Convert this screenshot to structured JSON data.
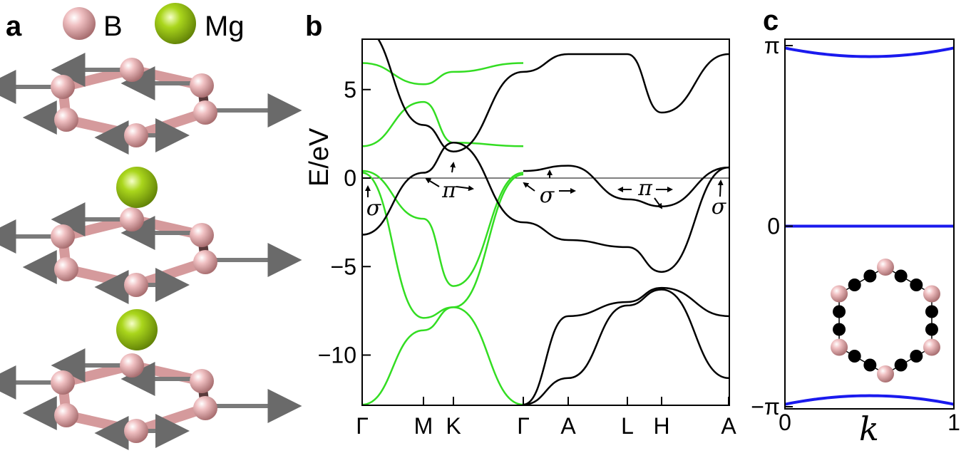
{
  "panels": {
    "a": {
      "letter": "a",
      "legend": [
        {
          "label": "B",
          "color": "#e3a6a8"
        },
        {
          "label": "Mg",
          "color": "#9ccc1a"
        }
      ]
    },
    "b": {
      "letter": "b",
      "ylabel": "E/eV",
      "yticks": [
        "5",
        "0",
        "−5",
        "−10"
      ],
      "kpoints": [
        "Γ",
        "M",
        "K",
        "Γ",
        "A",
        "L",
        "H",
        "A"
      ],
      "annotations": [
        "σ",
        "π",
        "σ",
        "π",
        "σ"
      ]
    },
    "c": {
      "letter": "c",
      "yticks": [
        "π",
        "0",
        "−π"
      ],
      "xticks": [
        "0",
        "1"
      ],
      "xlabel": "k"
    }
  },
  "colors": {
    "green_band": "#33dd22",
    "black_band": "#000000",
    "blue_band": "#1a1aee",
    "boron": "#e3a6a8",
    "magnesium": "#9ccc1a"
  },
  "chart_data": [
    {
      "type": "line",
      "title": "",
      "xlabel": "",
      "ylabel": "E/eV",
      "x": [
        "Γ",
        "M",
        "K",
        "Γ",
        "A",
        "L",
        "H",
        "A"
      ],
      "ylim": [
        -12.8,
        7.8
      ],
      "yticks": [
        5,
        0,
        -5,
        -10
      ],
      "fermi_level": 0,
      "series": [
        {
          "color": "green",
          "x": [
            0,
            1,
            2,
            3
          ],
          "values": [
            0.4,
            -2.3,
            -6.1,
            0.3
          ]
        },
        {
          "color": "green",
          "x": [
            0,
            1,
            2,
            3
          ],
          "values": [
            0.3,
            -7.9,
            -7.3,
            0.2
          ]
        },
        {
          "color": "green",
          "x": [
            0,
            1,
            2,
            3
          ],
          "values": [
            -12.8,
            -8.6,
            -7.3,
            -12.8
          ]
        },
        {
          "color": "green",
          "x": [
            0,
            1,
            2,
            3
          ],
          "values": [
            1.8,
            4.3,
            2.0,
            1.8
          ]
        },
        {
          "color": "green",
          "x": [
            0,
            1,
            2,
            3
          ],
          "values": [
            6.5,
            5.3,
            6.0,
            6.5
          ]
        },
        {
          "color": "black",
          "x": [
            0,
            1,
            2,
            3,
            4,
            5,
            6,
            7
          ],
          "values": [
            -3.2,
            0.3,
            2.0,
            -2.5,
            -3.5,
            -3.9,
            -5.3,
            0.6
          ]
        },
        {
          "color": "black",
          "x": [
            0,
            1,
            2,
            3,
            4,
            5,
            6,
            7
          ],
          "values": [
            8.5,
            3.0,
            1.5,
            6.0,
            7.0,
            7.0,
            3.7,
            7.0
          ]
        },
        {
          "color": "black",
          "x": [
            3,
            4,
            5,
            6,
            7
          ],
          "values": [
            0.4,
            0.7,
            -1.2,
            -1.6,
            0.6
          ]
        },
        {
          "color": "black",
          "x": [
            3,
            4,
            5,
            6,
            7
          ],
          "values": [
            -12.8,
            -11.3,
            -7.2,
            -6.3,
            -11.3
          ]
        },
        {
          "color": "black",
          "x": [
            3,
            4,
            5,
            6,
            7
          ],
          "values": [
            -12.8,
            -7.8,
            -7.0,
            -6.2,
            -7.8
          ]
        }
      ]
    },
    {
      "type": "line",
      "title": "",
      "xlabel": "k",
      "ylabel": "",
      "xlim": [
        0,
        1
      ],
      "ylim": [
        -3.1416,
        3.1416
      ],
      "yticks": [
        "−π",
        "0",
        "π"
      ],
      "series": [
        {
          "color": "blue",
          "x": [
            0,
            0.5,
            1
          ],
          "values": [
            3.1,
            2.95,
            3.1
          ]
        },
        {
          "color": "blue",
          "x": [
            0,
            0.5,
            1
          ],
          "values": [
            0,
            0,
            0
          ]
        },
        {
          "color": "blue",
          "x": [
            0,
            0.5,
            1
          ],
          "values": [
            -3.1,
            -2.95,
            -3.1
          ]
        }
      ]
    }
  ]
}
